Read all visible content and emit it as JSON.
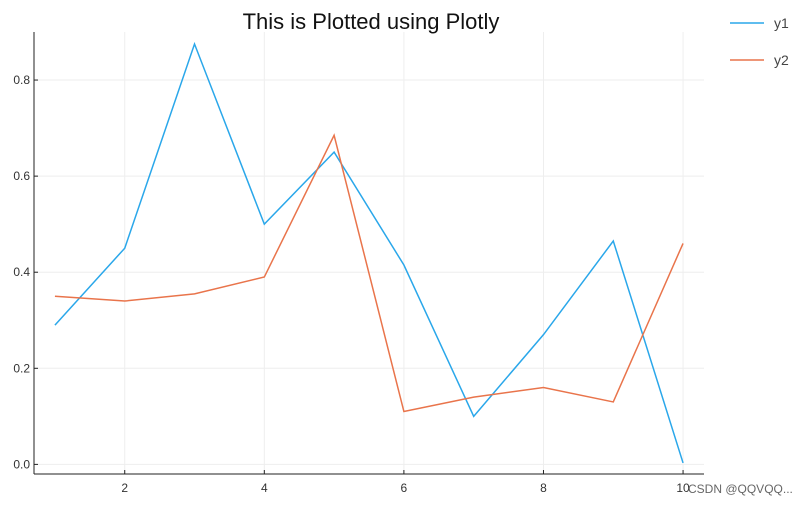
{
  "chart_data": {
    "type": "line",
    "title": "This is Plotted using Plotly",
    "xlabel": "",
    "ylabel": "",
    "x": [
      1,
      2,
      3,
      4,
      5,
      6,
      7,
      8,
      9,
      10
    ],
    "xlim": [
      0.7,
      10.3
    ],
    "ylim": [
      -0.02,
      0.9
    ],
    "x_ticks": [
      2,
      4,
      6,
      8,
      10
    ],
    "y_ticks": [
      0.0,
      0.2,
      0.4,
      0.6,
      0.8
    ],
    "x_tick_labels": [
      "2",
      "4",
      "6",
      "8",
      "10"
    ],
    "y_tick_labels": [
      "0.0",
      "0.2",
      "0.4",
      "0.6",
      "0.8"
    ],
    "grid": true,
    "legend_position": "top-right-outside",
    "series": [
      {
        "name": "y1",
        "color": "#2aa7ea",
        "values": [
          0.29,
          0.45,
          0.875,
          0.5,
          0.65,
          0.415,
          0.1,
          0.27,
          0.465,
          0.003
        ]
      },
      {
        "name": "y2",
        "color": "#e9744b",
        "values": [
          0.35,
          0.34,
          0.355,
          0.39,
          0.685,
          0.11,
          0.14,
          0.16,
          0.13,
          0.46
        ]
      }
    ]
  },
  "watermark": "CSDN @QQVQQ..."
}
